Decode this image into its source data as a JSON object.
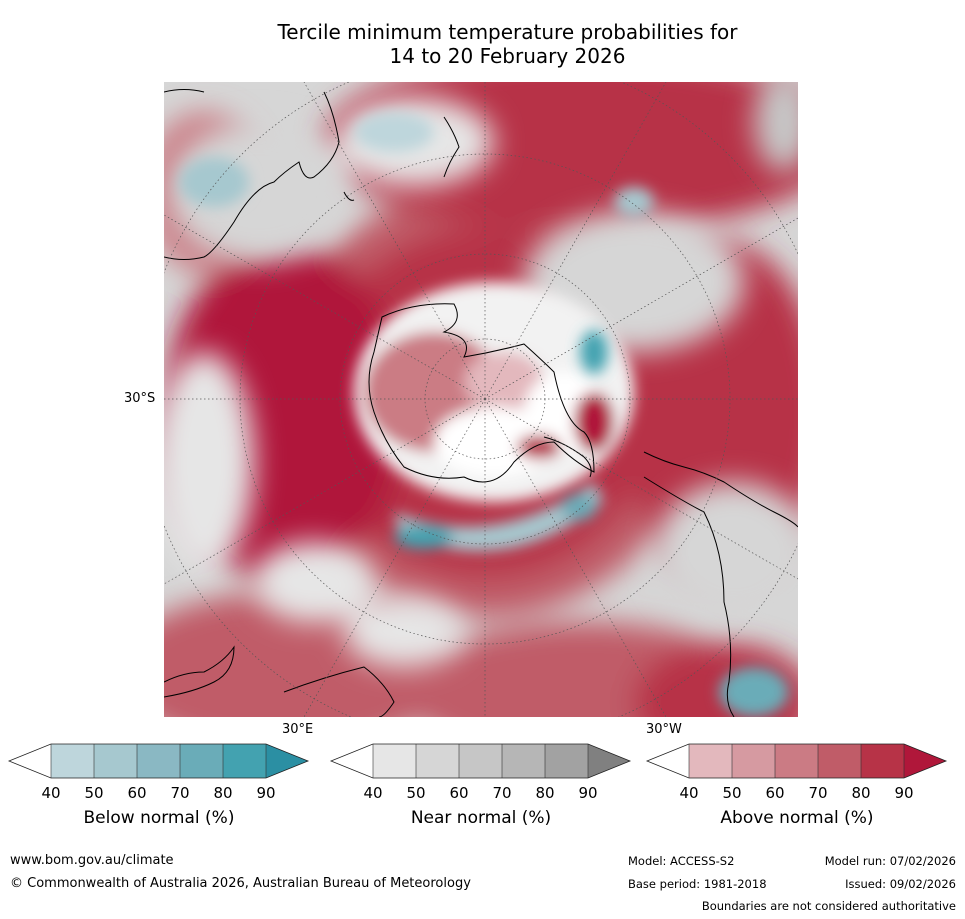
{
  "title": {
    "line1": "Tercile minimum temperature probabilities for",
    "line2": "14 to 20 February 2026"
  },
  "map": {
    "lat_label": "30°S",
    "lon_labels": {
      "east": "30°E",
      "west": "30°W"
    }
  },
  "legends": [
    {
      "name": "below",
      "title": "Below normal (%)",
      "ticks": [
        "40",
        "50",
        "60",
        "70",
        "80",
        "90"
      ],
      "colors": [
        "#ffffff",
        "#bed6dc",
        "#a6c8cf",
        "#8ab8c3",
        "#6aacb8",
        "#43a2b0",
        "#2b8fa3"
      ]
    },
    {
      "name": "near",
      "title": "Near normal (%)",
      "ticks": [
        "40",
        "50",
        "60",
        "70",
        "80",
        "90"
      ],
      "colors": [
        "#ffffff",
        "#e6e6e6",
        "#d6d6d6",
        "#c6c6c6",
        "#b6b6b6",
        "#a2a2a2",
        "#808080"
      ]
    },
    {
      "name": "above",
      "title": "Above normal (%)",
      "ticks": [
        "40",
        "50",
        "60",
        "70",
        "80",
        "90"
      ],
      "colors": [
        "#ffffff",
        "#e3b8bd",
        "#d69aa1",
        "#cb7b84",
        "#c05c68",
        "#b73347",
        "#b0173a"
      ]
    }
  ],
  "footer": {
    "url": "www.bom.gov.au/climate",
    "copyright": "© Commonwealth of Australia 2026, Australian Bureau of Meteorology",
    "model": "Model: ACCESS-S2",
    "base_period": "Base period: 1981-2018",
    "model_run": "Model run: 07/02/2026",
    "issued": "Issued: 09/02/2026",
    "disclaimer": "Boundaries are not considered authoritative"
  }
}
